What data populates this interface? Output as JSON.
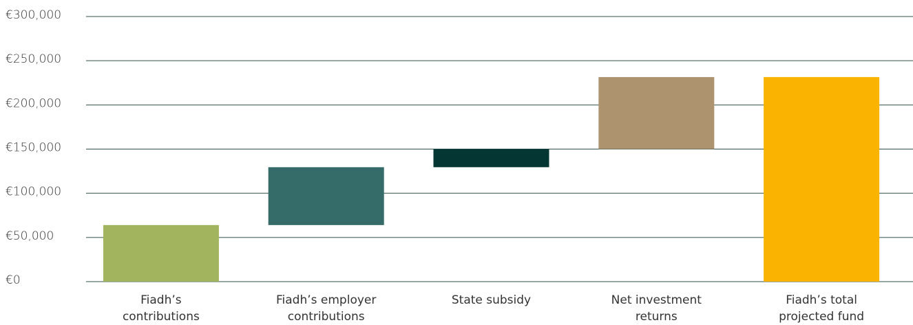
{
  "chart_data": {
    "type": "waterfall",
    "categories": [
      "Fiadh’s\ncontributions",
      "Fiadh’s employer\ncontributions",
      "State subsidy",
      "Net investment\nreturns",
      "Fiadh’s total\nprojected fund"
    ],
    "values": [
      64000,
      65500,
      20500,
      81500,
      231500
    ],
    "is_total": [
      false,
      false,
      false,
      false,
      true
    ],
    "colors": [
      "#a2b55e",
      "#356b69",
      "#043633",
      "#ad936e",
      "#fab400"
    ],
    "ylim": [
      0,
      300000
    ],
    "yticks": [
      {
        "value": 0,
        "label": "€0"
      },
      {
        "value": 50000,
        "label": "€50,000"
      },
      {
        "value": 100000,
        "label": "€100,000"
      },
      {
        "value": 150000,
        "label": "€150,000"
      },
      {
        "value": 200000,
        "label": "€200,000"
      },
      {
        "value": 250000,
        "label": "€250,000"
      },
      {
        "value": 300000,
        "label": "€300,000"
      }
    ],
    "grid": true
  }
}
